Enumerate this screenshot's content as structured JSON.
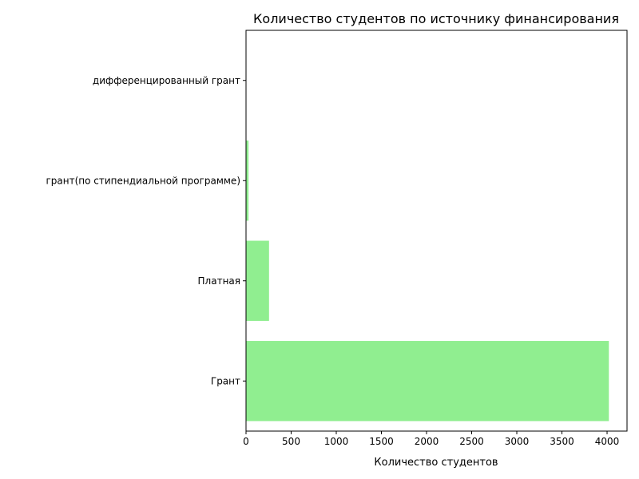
{
  "chart_data": {
    "type": "bar",
    "orientation": "horizontal",
    "title": "Количество студентов по источнику финансирования",
    "xlabel": "Количество студентов",
    "ylabel": "",
    "categories": [
      "Грант",
      "Платная",
      "грант(по стипендиальной программе)",
      "дифференцированный грант"
    ],
    "values": [
      4020,
      255,
      28,
      1
    ],
    "xlim": [
      0,
      4221
    ],
    "xticks": [
      0,
      500,
      1000,
      1500,
      2000,
      2500,
      3000,
      3500,
      4000
    ],
    "grid": false,
    "legend": "none",
    "bar_color": "#90ee90"
  }
}
